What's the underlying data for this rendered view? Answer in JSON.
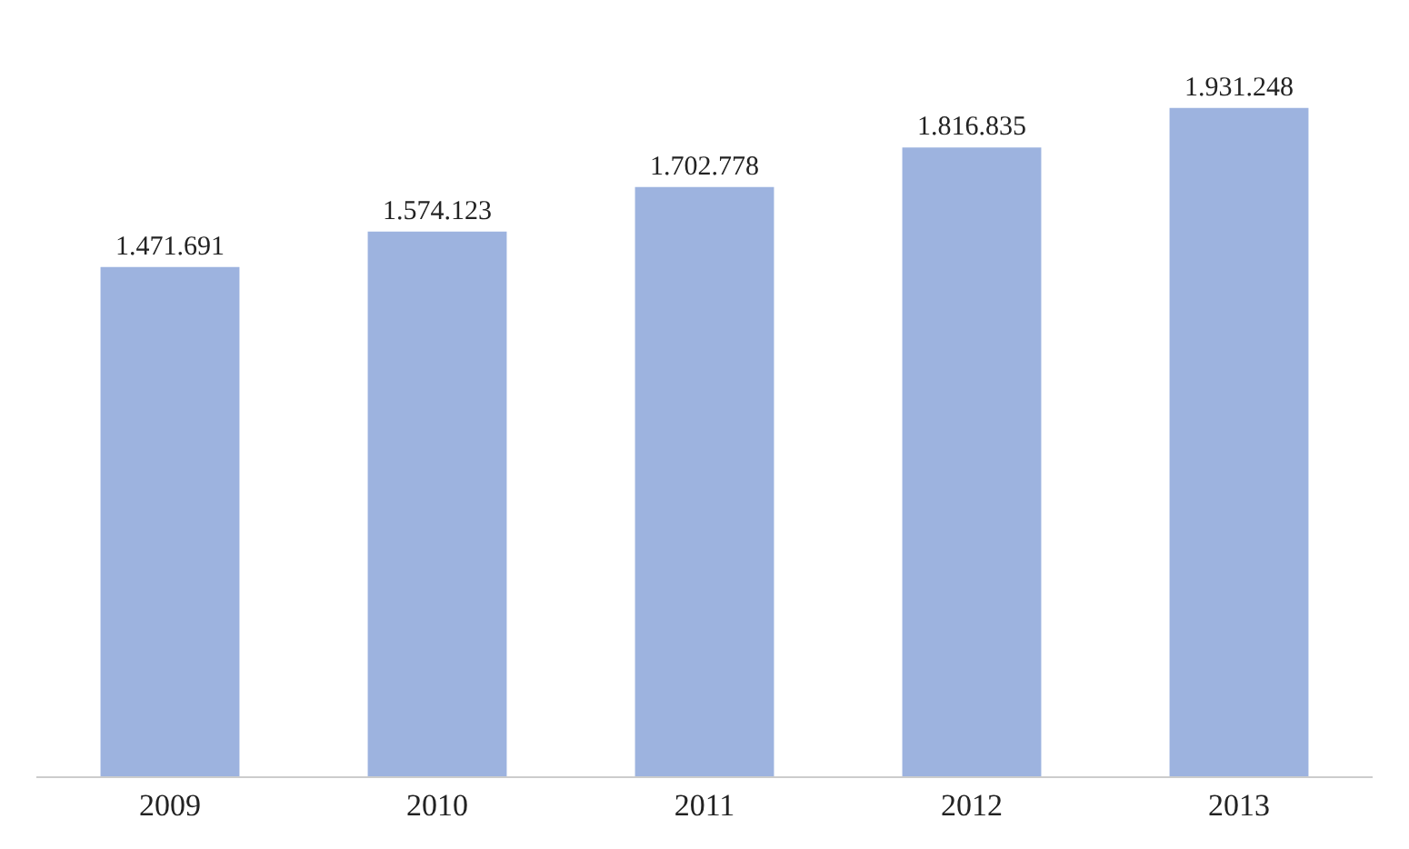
{
  "chart_data": {
    "type": "bar",
    "categories": [
      "2009",
      "2010",
      "2011",
      "2012",
      "2013"
    ],
    "values": [
      1471691,
      1574123,
      1702778,
      1816835,
      1931248
    ],
    "value_labels": [
      "1.471.691",
      "1.574.123",
      "1.702.778",
      "1.816.835",
      "1.931.248"
    ],
    "color": "#9db3df",
    "legend": false
  }
}
